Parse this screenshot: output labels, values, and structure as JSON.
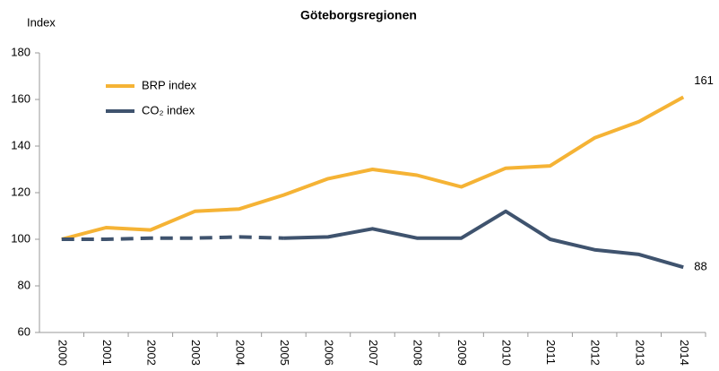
{
  "chart_data": {
    "type": "line",
    "title": "Göteborgsregionen",
    "ylabel": "Index",
    "categories": [
      "2000",
      "2001",
      "2002",
      "2003",
      "2004",
      "2005",
      "2006",
      "2007",
      "2008",
      "2009",
      "2010",
      "2011",
      "2012",
      "2013",
      "2014"
    ],
    "series": [
      {
        "name": "BRP index",
        "color": "#f5b335",
        "values": [
          100,
          105,
          104,
          112,
          113,
          119,
          126,
          130,
          127.5,
          122.5,
          130.5,
          131.5,
          143.5,
          150.5,
          161
        ]
      },
      {
        "name": "CO₂ index",
        "color": "#3f536e",
        "dash_until": "2005",
        "values": [
          100,
          100,
          100.5,
          100.5,
          101,
          100.5,
          101,
          104.5,
          100.5,
          100.5,
          112,
          100,
          95.5,
          93.5,
          88
        ]
      }
    ],
    "ylim": [
      60,
      180
    ],
    "yticks": [
      60,
      80,
      100,
      120,
      140,
      160,
      180
    ],
    "grid": false,
    "legend": "upper left"
  }
}
